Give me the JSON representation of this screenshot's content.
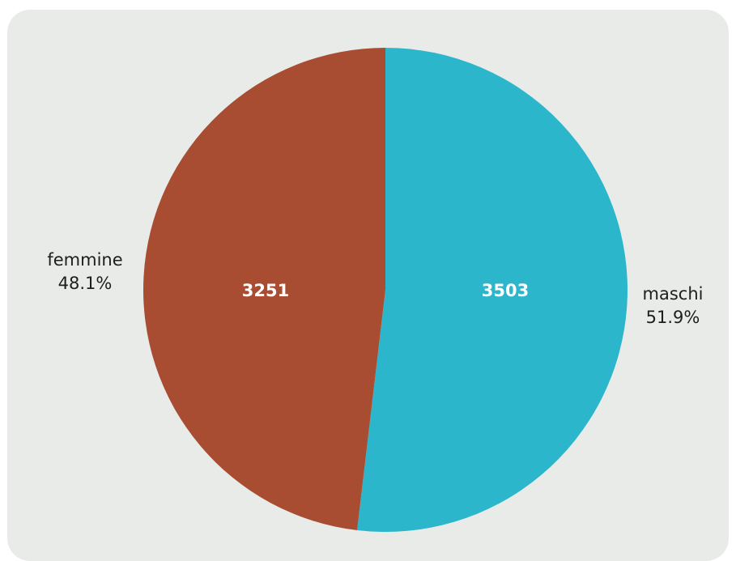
{
  "chart_data": {
    "type": "pie",
    "slices": [
      {
        "name": "maschi",
        "value": 3503,
        "percent_label": "51.9%",
        "color": "#2cb6cb"
      },
      {
        "name": "femmine",
        "value": 3251,
        "percent_label": "48.1%",
        "color": "#a84c32"
      }
    ],
    "start_angle": "top",
    "direction": "clockwise"
  }
}
